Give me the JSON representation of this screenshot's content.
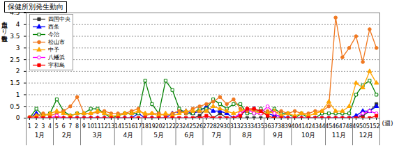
{
  "chart_data": {
    "type": "line",
    "title": "保健所別発生動向",
    "x_label": "(週)",
    "y_label": "定点当たり報告数",
    "x": [
      1,
      2,
      3,
      4,
      5,
      6,
      7,
      8,
      9,
      10,
      11,
      12,
      13,
      14,
      15,
      16,
      17,
      18,
      19,
      20,
      21,
      22,
      23,
      24,
      25,
      26,
      27,
      28,
      29,
      30,
      31,
      32,
      33,
      34,
      35,
      36,
      37,
      38,
      39,
      40,
      41,
      42,
      43,
      44,
      45,
      46,
      47,
      48,
      49,
      50,
      51,
      52
    ],
    "xlim": [
      0.5,
      52.5
    ],
    "xticks": [
      1,
      2,
      3,
      4,
      5,
      6,
      7,
      8,
      9,
      10,
      11,
      12,
      13,
      14,
      15,
      16,
      17,
      18,
      19,
      20,
      21,
      22,
      23,
      24,
      25,
      26,
      27,
      28,
      29,
      30,
      31,
      32,
      33,
      34,
      35,
      36,
      37,
      38,
      39,
      40,
      41,
      42,
      43,
      44,
      45,
      46,
      47,
      48,
      49,
      50,
      51,
      52
    ],
    "x_groups": [
      {
        "label": "1月",
        "weeks": [
          1,
          4
        ]
      },
      {
        "label": "2月",
        "weeks": [
          5,
          8
        ]
      },
      {
        "label": "3月",
        "weeks": [
          9,
          13
        ]
      },
      {
        "label": "4月",
        "weeks": [
          14,
          17
        ]
      },
      {
        "label": "5月",
        "weeks": [
          18,
          22
        ]
      },
      {
        "label": "6月",
        "weeks": [
          23,
          26
        ]
      },
      {
        "label": "7月",
        "weeks": [
          27,
          30
        ]
      },
      {
        "label": "8月",
        "weeks": [
          31,
          35
        ]
      },
      {
        "label": "9月",
        "weeks": [
          36,
          39
        ]
      },
      {
        "label": "10月",
        "weeks": [
          40,
          44
        ]
      },
      {
        "label": "11月",
        "weeks": [
          45,
          48
        ]
      },
      {
        "label": "12月",
        "weeks": [
          49,
          52
        ]
      }
    ],
    "ylim": [
      0,
      4.5
    ],
    "yticks": [
      0,
      0.5,
      1,
      1.5,
      2,
      2.5,
      3,
      3.5,
      4,
      4.5
    ],
    "grid": true,
    "legend": "top-left",
    "series": [
      {
        "name": "四国中央",
        "color": "#333333",
        "marker": "square",
        "values": [
          0,
          0,
          0,
          0,
          0,
          0,
          0,
          0,
          0,
          0,
          0,
          0,
          0,
          0,
          0,
          0,
          0,
          0,
          0,
          0,
          0,
          0,
          0,
          0,
          0,
          0.1,
          0.4,
          0,
          0.2,
          0,
          0,
          0,
          0,
          0,
          0,
          0,
          0,
          0,
          0,
          0,
          0,
          0,
          0,
          0,
          0,
          0,
          0,
          0,
          0,
          0.1,
          0.3,
          0.6
        ]
      },
      {
        "name": "西条",
        "color": "#0000ff",
        "marker": "triangle",
        "values": [
          0,
          0.2,
          0,
          0,
          0,
          0,
          0,
          0,
          0,
          0,
          0,
          0,
          0,
          0,
          0,
          0,
          0.2,
          0,
          0,
          0,
          0,
          0.2,
          0.3,
          0.3,
          0.2,
          0.3,
          0.5,
          0.3,
          0.3,
          0.2,
          0,
          0.2,
          0.3,
          0.4,
          0.2,
          0.2,
          0.1,
          0.1,
          0,
          0,
          0,
          0,
          0,
          0,
          0,
          0,
          0,
          0,
          0.1,
          0.3,
          0.3,
          0.5
        ]
      },
      {
        "name": "今治",
        "color": "#008000",
        "marker": "square-open",
        "values": [
          0,
          0.4,
          0.1,
          0.2,
          0.8,
          0.3,
          0.1,
          0.2,
          0.2,
          0.4,
          0.4,
          0.2,
          0,
          0.1,
          0.2,
          0.2,
          0.2,
          1.6,
          0.6,
          0.2,
          1.6,
          1.2,
          0.4,
          0.2,
          0.2,
          0.4,
          0.4,
          0.8,
          0.6,
          0.4,
          0.6,
          0.6,
          0.2,
          0.2,
          0.4,
          0.2,
          0.4,
          0.2,
          0.2,
          0,
          0.2,
          0,
          0,
          0.2,
          0.2,
          0.2,
          0.2,
          0.2,
          1.0,
          1.4,
          1.6,
          1.0
        ]
      },
      {
        "name": "松山市",
        "color": "#f07820",
        "marker": "circle",
        "values": [
          0.05,
          0.1,
          0.2,
          0.1,
          0.2,
          0.3,
          0.5,
          0.9,
          0.2,
          0.2,
          0.25,
          0.3,
          0.2,
          0.2,
          0.2,
          0.3,
          0.4,
          0.1,
          0.2,
          0.2,
          0.1,
          0.2,
          0.3,
          0.2,
          0.4,
          0.5,
          0.6,
          0.7,
          0.9,
          0.6,
          0.8,
          0.4,
          0.3,
          0.4,
          0.2,
          0.3,
          0.2,
          0.3,
          0.2,
          0.3,
          0.2,
          0.2,
          0.3,
          0.3,
          0.5,
          4.3,
          2.6,
          3.0,
          3.5,
          2.4,
          3.8,
          3.0
        ]
      },
      {
        "name": "中予",
        "color": "#ffa500",
        "marker": "triangle",
        "values": [
          0,
          0.1,
          0.1,
          0.2,
          0.3,
          0.2,
          0.1,
          0.2,
          0.2,
          0.2,
          0.3,
          0.2,
          0.1,
          0.1,
          0.2,
          0.2,
          0.3,
          0.2,
          0.2,
          0.1,
          0.2,
          0.1,
          0.2,
          0.3,
          0.3,
          0.3,
          0.3,
          0.5,
          0.4,
          0.3,
          0.2,
          0.3,
          0.4,
          0.3,
          0.2,
          0.2,
          0.3,
          0.1,
          0.2,
          0.1,
          0.2,
          0.1,
          0.2,
          0.3,
          0.7,
          0.3,
          0.3,
          0.5,
          1.5,
          1.3,
          2.0,
          1.5
        ]
      },
      {
        "name": "八幡浜",
        "color": "#ff00ff",
        "marker": "circle-open",
        "values": [
          0,
          0,
          0,
          0,
          0.1,
          0,
          0,
          0,
          0,
          0,
          0,
          0,
          0,
          0,
          0,
          0,
          0,
          0,
          0,
          0,
          0,
          0,
          0,
          0,
          0,
          0,
          0,
          0,
          0,
          0,
          0,
          0.2,
          0.4,
          0.2,
          0.2,
          0.5,
          0.2,
          0,
          0,
          0,
          0,
          0,
          0,
          0,
          0,
          0,
          0,
          0,
          0,
          0.2,
          0.3,
          0.2
        ]
      },
      {
        "name": "宇和島",
        "color": "#ff0000",
        "marker": "square",
        "values": [
          0,
          0,
          0,
          0,
          0,
          0,
          0,
          0,
          0,
          0,
          0,
          0,
          0,
          0,
          0,
          0,
          0,
          0,
          0,
          0,
          0,
          0,
          0,
          0,
          0,
          0,
          0.1,
          0,
          0,
          0,
          0,
          0.1,
          0.4,
          0.4,
          0.3,
          0.1,
          0,
          0,
          0,
          0,
          0,
          0,
          0,
          0,
          0,
          0,
          0,
          0,
          0,
          0,
          0,
          0.1
        ]
      }
    ]
  }
}
